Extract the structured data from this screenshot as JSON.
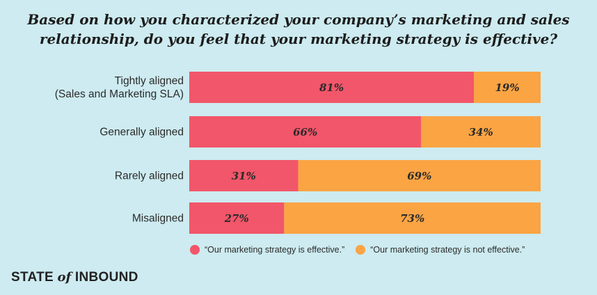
{
  "chart_data": {
    "type": "bar",
    "orientation": "horizontal",
    "stacked": true,
    "title_line1": "Based on how you characterized your company’s marketing and sales",
    "title_line2": "relationship, do you feel that your marketing strategy is effective?",
    "categories": [
      [
        "Tightly aligned",
        "(Sales and Marketing SLA)"
      ],
      [
        "Generally aligned"
      ],
      [
        "Rarely aligned"
      ],
      [
        "Misaligned"
      ]
    ],
    "series": [
      {
        "name": "“Our marketing strategy is effective.”",
        "values": [
          81,
          66,
          31,
          27
        ],
        "labels": [
          "81%",
          "66%",
          "31%",
          "27%"
        ],
        "color": "#f2566a"
      },
      {
        "name": "“Our marketing strategy is not effective.”",
        "values": [
          19,
          34,
          69,
          73
        ],
        "labels": [
          "19%",
          "34%",
          "69%",
          "73%"
        ],
        "color": "#faa444"
      }
    ],
    "xlim": [
      0,
      100
    ],
    "legend_position": "bottom",
    "grid": false
  },
  "brand": {
    "part1": "STATE ",
    "part2": "of",
    "part3": " INBOUND"
  }
}
